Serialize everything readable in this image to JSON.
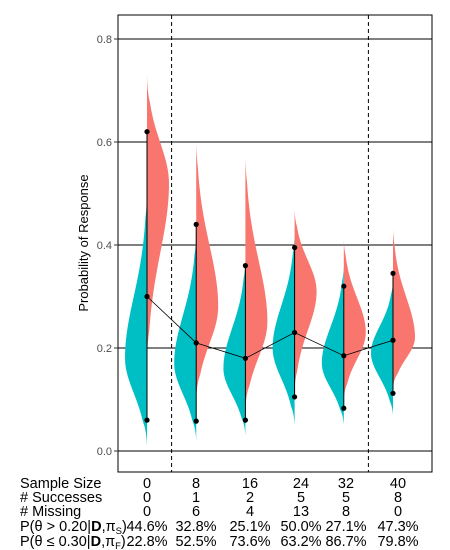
{
  "chart_data": {
    "type": "violin",
    "ylabel": "Probability of Response",
    "ylim": [
      0,
      0.8
    ],
    "yticks": [
      "0.0",
      "0.2",
      "0.4",
      "0.6",
      "0.8"
    ],
    "grid": "horizontal",
    "colors": {
      "left": "#00BFC4",
      "right": "#F8766D"
    },
    "x": [
      0,
      8,
      16,
      24,
      32,
      40
    ],
    "dashed_vlines_at_x": [
      4,
      36
    ],
    "line_series": [
      0.3,
      0.21,
      0.18,
      0.23,
      0.185,
      0.215
    ],
    "upper_points": [
      0.62,
      0.44,
      0.36,
      0.395,
      0.32,
      0.345
    ],
    "lower_points": [
      0.06,
      0.058,
      0.06,
      0.105,
      0.083,
      0.112
    ],
    "distributions": [
      {
        "left": {
          "min": 0.01,
          "max": 0.5,
          "mode": 0.18
        },
        "right": {
          "min": 0.18,
          "max": 0.73,
          "mode": 0.52
        }
      },
      {
        "left": {
          "min": 0.02,
          "max": 0.42,
          "mode": 0.17
        },
        "right": {
          "min": 0.1,
          "max": 0.6,
          "mode": 0.28
        }
      },
      {
        "left": {
          "min": 0.03,
          "max": 0.37,
          "mode": 0.16
        },
        "right": {
          "min": 0.08,
          "max": 0.57,
          "mode": 0.25
        }
      },
      {
        "left": {
          "min": 0.05,
          "max": 0.42,
          "mode": 0.2
        },
        "right": {
          "min": 0.12,
          "max": 0.47,
          "mode": 0.31
        }
      },
      {
        "left": {
          "min": 0.05,
          "max": 0.36,
          "mode": 0.17
        },
        "right": {
          "min": 0.1,
          "max": 0.41,
          "mode": 0.23
        }
      },
      {
        "left": {
          "min": 0.07,
          "max": 0.33,
          "mode": 0.19
        },
        "right": {
          "min": 0.12,
          "max": 0.43,
          "mode": 0.22
        }
      }
    ]
  },
  "table": {
    "rows": [
      {
        "label": "Sample Size",
        "values": [
          "0",
          "8",
          "16",
          "24",
          "32",
          "40"
        ]
      },
      {
        "label": "# Successes",
        "values": [
          "0",
          "1",
          "2",
          "5",
          "5",
          "8"
        ]
      },
      {
        "label": "# Missing",
        "values": [
          "0",
          "6",
          "4",
          "13",
          "8",
          "0"
        ]
      },
      {
        "label_parts": [
          "P(θ > 0.20|",
          "D",
          ",π",
          "S",
          ")"
        ],
        "values": [
          "44.6%",
          "32.8%",
          "25.1%",
          "50.0%",
          "27.1%",
          "47.3%"
        ]
      },
      {
        "label_parts": [
          "P(θ ≤ 0.30|",
          "D",
          ",π",
          "F",
          ")"
        ],
        "values": [
          "22.8%",
          "52.5%",
          "73.6%",
          "63.2%",
          "86.7%",
          "79.8%"
        ]
      }
    ]
  }
}
